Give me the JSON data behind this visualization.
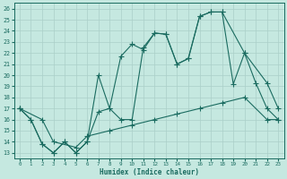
{
  "xlabel": "Humidex (Indice chaleur)",
  "xlim": [
    -0.5,
    23.5
  ],
  "ylim": [
    12.5,
    26.5
  ],
  "xticks": [
    0,
    1,
    2,
    3,
    4,
    5,
    6,
    7,
    8,
    9,
    10,
    11,
    12,
    13,
    14,
    15,
    16,
    17,
    18,
    19,
    20,
    21,
    22,
    23
  ],
  "yticks": [
    13,
    14,
    15,
    16,
    17,
    18,
    19,
    20,
    21,
    22,
    23,
    24,
    25,
    26
  ],
  "bg_color": "#c5e8e0",
  "grid_color": "#aacfc8",
  "line_color": "#1a6b60",
  "line1_x": [
    0,
    2,
    3,
    5,
    6,
    8,
    10,
    12,
    14,
    16,
    18,
    20,
    22,
    23
  ],
  "line1_y": [
    17.0,
    16.0,
    14.0,
    13.5,
    14.5,
    15.0,
    15.5,
    16.0,
    16.5,
    17.0,
    17.5,
    18.0,
    16.0,
    16.0
  ],
  "line2_x": [
    0,
    1,
    2,
    3,
    4,
    5,
    6,
    7,
    8,
    9,
    10,
    11,
    12,
    13,
    14,
    15,
    16,
    17,
    18,
    19,
    20,
    21,
    22,
    23
  ],
  "line2_y": [
    17.0,
    16.0,
    13.8,
    13.0,
    14.0,
    13.0,
    14.0,
    20.0,
    17.0,
    16.0,
    16.0,
    22.5,
    23.8,
    23.7,
    21.0,
    21.5,
    25.3,
    25.7,
    25.7,
    19.2,
    22.0,
    19.3,
    17.0,
    16.0
  ],
  "line3_x": [
    0,
    1,
    2,
    3,
    4,
    5,
    6,
    7,
    8,
    9,
    10,
    11,
    12,
    13,
    14,
    15,
    16,
    17,
    18,
    20,
    22,
    23
  ],
  "line3_y": [
    17.0,
    16.0,
    13.8,
    13.0,
    14.0,
    13.0,
    14.0,
    16.7,
    17.0,
    21.7,
    22.8,
    22.3,
    23.8,
    23.7,
    21.0,
    21.5,
    25.3,
    25.7,
    25.7,
    22.0,
    19.3,
    17.0
  ]
}
